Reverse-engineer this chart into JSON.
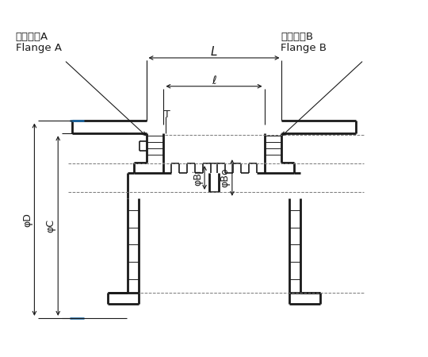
{
  "bg_color": "#ffffff",
  "lc": "#1a1a1a",
  "dc": "#1a1a1a",
  "dsh": "#777777",
  "blue": "#1a6aaa",
  "figsize": [
    5.4,
    4.5
  ],
  "dpi": 100,
  "labels": {
    "flange_a_jp": "フランジA",
    "flange_a_en": "Flange A",
    "flange_b_jp": "フランジB",
    "flange_b_en": "Flange B",
    "L": "L",
    "ell": "ℓ",
    "T": "T",
    "phi_D": "φD",
    "phi_C": "φC",
    "phi_Bi": "φBi",
    "phi_Bo": "φBo"
  }
}
